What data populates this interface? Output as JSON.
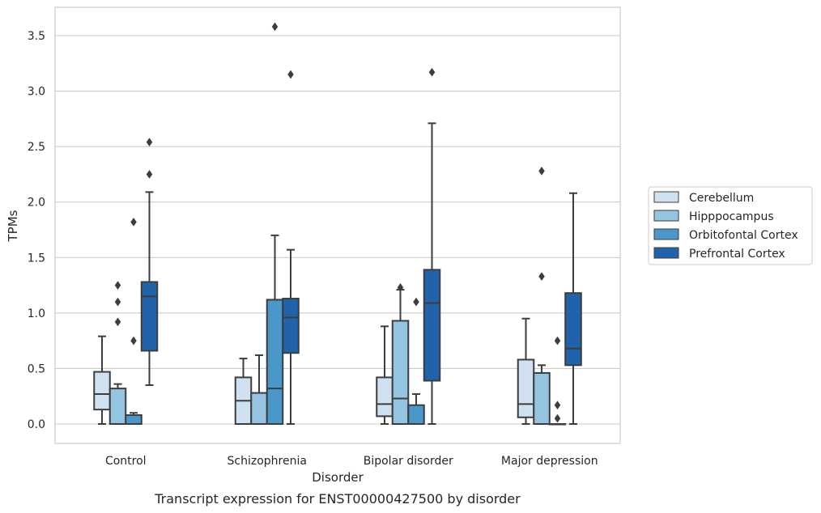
{
  "chart_data": {
    "type": "box",
    "caption": "Transcript expression for ENST00000427500 by disorder",
    "xlabel": "Disorder",
    "ylabel": "TPMs",
    "ylim": [
      -0.17,
      3.78
    ],
    "yticks": [
      0.0,
      0.5,
      1.0,
      1.5,
      2.0,
      2.5,
      3.0,
      3.5
    ],
    "ytick_labels": [
      "0.0",
      "0.5",
      "1.0",
      "1.5",
      "2.0",
      "2.5",
      "3.0",
      "3.5"
    ],
    "grid": "horizontal",
    "legend_position": "right",
    "categories": [
      "Control",
      "Schizophrenia",
      "Bipolar disorder",
      "Major depression"
    ],
    "series": [
      {
        "name": "Cerebellum",
        "color": "#d0e1f2",
        "boxes": [
          {
            "whislo": 0.0,
            "q1": 0.13,
            "med": 0.27,
            "q3": 0.47,
            "whishi": 0.79,
            "fliers": []
          },
          {
            "whislo": 0.0,
            "q1": 0.0,
            "med": 0.21,
            "q3": 0.42,
            "whishi": 0.59,
            "fliers": []
          },
          {
            "whislo": 0.0,
            "q1": 0.07,
            "med": 0.18,
            "q3": 0.42,
            "whishi": 0.88,
            "fliers": []
          },
          {
            "whislo": 0.0,
            "q1": 0.06,
            "med": 0.18,
            "q3": 0.58,
            "whishi": 0.95,
            "fliers": []
          }
        ]
      },
      {
        "name": "Hipppocampus",
        "color": "#94c4df",
        "boxes": [
          {
            "whislo": 0.0,
            "q1": 0.0,
            "med": 0.0,
            "q3": 0.32,
            "whishi": 0.36,
            "fliers": [
              0.92,
              1.1,
              1.25
            ]
          },
          {
            "whislo": 0.0,
            "q1": 0.0,
            "med": 0.0,
            "q3": 0.28,
            "whishi": 0.62,
            "fliers": []
          },
          {
            "whislo": 0.0,
            "q1": 0.0,
            "med": 0.23,
            "q3": 0.93,
            "whishi": 1.21,
            "fliers": [
              1.23
            ]
          },
          {
            "whislo": 0.0,
            "q1": 0.0,
            "med": 0.0,
            "q3": 0.46,
            "whishi": 0.53,
            "fliers": [
              1.33,
              2.28
            ]
          }
        ]
      },
      {
        "name": "Orbitofontal Cortex",
        "color": "#4a98c9",
        "boxes": [
          {
            "whislo": 0.0,
            "q1": 0.0,
            "med": 0.0,
            "q3": 0.08,
            "whishi": 0.1,
            "fliers": [
              0.75,
              1.82
            ]
          },
          {
            "whislo": 0.0,
            "q1": 0.0,
            "med": 0.32,
            "q3": 1.12,
            "whishi": 1.7,
            "fliers": [
              3.58
            ]
          },
          {
            "whislo": 0.0,
            "q1": 0.0,
            "med": 0.0,
            "q3": 0.17,
            "whishi": 0.27,
            "fliers": [
              1.1
            ]
          },
          {
            "whislo": 0.0,
            "q1": 0.0,
            "med": 0.0,
            "q3": 0.0,
            "whishi": 0.0,
            "fliers": [
              0.05,
              0.17,
              0.75
            ]
          }
        ]
      },
      {
        "name": "Prefrontal Cortex",
        "color": "#2163aa",
        "boxes": [
          {
            "whislo": 0.35,
            "q1": 0.66,
            "med": 1.15,
            "q3": 1.28,
            "whishi": 2.09,
            "fliers": [
              2.25,
              2.54
            ]
          },
          {
            "whislo": 0.0,
            "q1": 0.64,
            "med": 0.96,
            "q3": 1.13,
            "whishi": 1.57,
            "fliers": [
              3.15
            ]
          },
          {
            "whislo": 0.0,
            "q1": 0.39,
            "med": 1.09,
            "q3": 1.39,
            "whishi": 2.71,
            "fliers": [
              3.17
            ]
          },
          {
            "whislo": 0.0,
            "q1": 0.53,
            "med": 0.68,
            "q3": 1.18,
            "whishi": 2.08,
            "fliers": []
          }
        ]
      }
    ]
  }
}
